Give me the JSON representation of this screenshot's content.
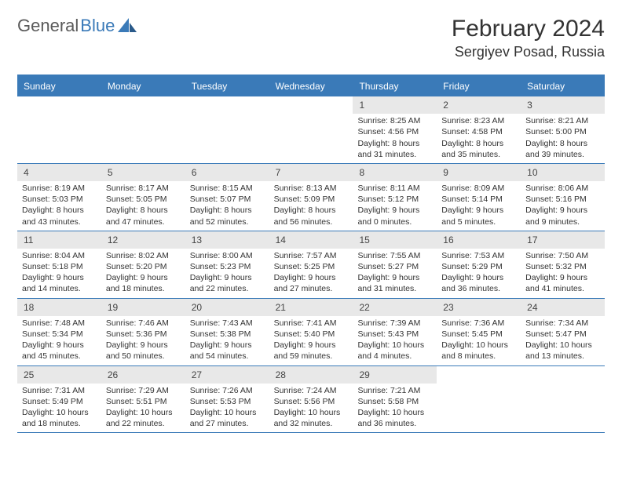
{
  "brand": {
    "part1": "General",
    "part2": "Blue"
  },
  "title": "February 2024",
  "location": "Sergiyev Posad, Russia",
  "colors": {
    "accent": "#3a7ab8",
    "daynum_bg": "#e8e8e8",
    "text": "#333333",
    "bg": "#ffffff"
  },
  "weekdays": [
    "Sunday",
    "Monday",
    "Tuesday",
    "Wednesday",
    "Thursday",
    "Friday",
    "Saturday"
  ],
  "weeks": [
    [
      {
        "num": "",
        "lines": []
      },
      {
        "num": "",
        "lines": []
      },
      {
        "num": "",
        "lines": []
      },
      {
        "num": "",
        "lines": []
      },
      {
        "num": "1",
        "lines": [
          "Sunrise: 8:25 AM",
          "Sunset: 4:56 PM",
          "Daylight: 8 hours and 31 minutes."
        ]
      },
      {
        "num": "2",
        "lines": [
          "Sunrise: 8:23 AM",
          "Sunset: 4:58 PM",
          "Daylight: 8 hours and 35 minutes."
        ]
      },
      {
        "num": "3",
        "lines": [
          "Sunrise: 8:21 AM",
          "Sunset: 5:00 PM",
          "Daylight: 8 hours and 39 minutes."
        ]
      }
    ],
    [
      {
        "num": "4",
        "lines": [
          "Sunrise: 8:19 AM",
          "Sunset: 5:03 PM",
          "Daylight: 8 hours and 43 minutes."
        ]
      },
      {
        "num": "5",
        "lines": [
          "Sunrise: 8:17 AM",
          "Sunset: 5:05 PM",
          "Daylight: 8 hours and 47 minutes."
        ]
      },
      {
        "num": "6",
        "lines": [
          "Sunrise: 8:15 AM",
          "Sunset: 5:07 PM",
          "Daylight: 8 hours and 52 minutes."
        ]
      },
      {
        "num": "7",
        "lines": [
          "Sunrise: 8:13 AM",
          "Sunset: 5:09 PM",
          "Daylight: 8 hours and 56 minutes."
        ]
      },
      {
        "num": "8",
        "lines": [
          "Sunrise: 8:11 AM",
          "Sunset: 5:12 PM",
          "Daylight: 9 hours and 0 minutes."
        ]
      },
      {
        "num": "9",
        "lines": [
          "Sunrise: 8:09 AM",
          "Sunset: 5:14 PM",
          "Daylight: 9 hours and 5 minutes."
        ]
      },
      {
        "num": "10",
        "lines": [
          "Sunrise: 8:06 AM",
          "Sunset: 5:16 PM",
          "Daylight: 9 hours and 9 minutes."
        ]
      }
    ],
    [
      {
        "num": "11",
        "lines": [
          "Sunrise: 8:04 AM",
          "Sunset: 5:18 PM",
          "Daylight: 9 hours and 14 minutes."
        ]
      },
      {
        "num": "12",
        "lines": [
          "Sunrise: 8:02 AM",
          "Sunset: 5:20 PM",
          "Daylight: 9 hours and 18 minutes."
        ]
      },
      {
        "num": "13",
        "lines": [
          "Sunrise: 8:00 AM",
          "Sunset: 5:23 PM",
          "Daylight: 9 hours and 22 minutes."
        ]
      },
      {
        "num": "14",
        "lines": [
          "Sunrise: 7:57 AM",
          "Sunset: 5:25 PM",
          "Daylight: 9 hours and 27 minutes."
        ]
      },
      {
        "num": "15",
        "lines": [
          "Sunrise: 7:55 AM",
          "Sunset: 5:27 PM",
          "Daylight: 9 hours and 31 minutes."
        ]
      },
      {
        "num": "16",
        "lines": [
          "Sunrise: 7:53 AM",
          "Sunset: 5:29 PM",
          "Daylight: 9 hours and 36 minutes."
        ]
      },
      {
        "num": "17",
        "lines": [
          "Sunrise: 7:50 AM",
          "Sunset: 5:32 PM",
          "Daylight: 9 hours and 41 minutes."
        ]
      }
    ],
    [
      {
        "num": "18",
        "lines": [
          "Sunrise: 7:48 AM",
          "Sunset: 5:34 PM",
          "Daylight: 9 hours and 45 minutes."
        ]
      },
      {
        "num": "19",
        "lines": [
          "Sunrise: 7:46 AM",
          "Sunset: 5:36 PM",
          "Daylight: 9 hours and 50 minutes."
        ]
      },
      {
        "num": "20",
        "lines": [
          "Sunrise: 7:43 AM",
          "Sunset: 5:38 PM",
          "Daylight: 9 hours and 54 minutes."
        ]
      },
      {
        "num": "21",
        "lines": [
          "Sunrise: 7:41 AM",
          "Sunset: 5:40 PM",
          "Daylight: 9 hours and 59 minutes."
        ]
      },
      {
        "num": "22",
        "lines": [
          "Sunrise: 7:39 AM",
          "Sunset: 5:43 PM",
          "Daylight: 10 hours and 4 minutes."
        ]
      },
      {
        "num": "23",
        "lines": [
          "Sunrise: 7:36 AM",
          "Sunset: 5:45 PM",
          "Daylight: 10 hours and 8 minutes."
        ]
      },
      {
        "num": "24",
        "lines": [
          "Sunrise: 7:34 AM",
          "Sunset: 5:47 PM",
          "Daylight: 10 hours and 13 minutes."
        ]
      }
    ],
    [
      {
        "num": "25",
        "lines": [
          "Sunrise: 7:31 AM",
          "Sunset: 5:49 PM",
          "Daylight: 10 hours and 18 minutes."
        ]
      },
      {
        "num": "26",
        "lines": [
          "Sunrise: 7:29 AM",
          "Sunset: 5:51 PM",
          "Daylight: 10 hours and 22 minutes."
        ]
      },
      {
        "num": "27",
        "lines": [
          "Sunrise: 7:26 AM",
          "Sunset: 5:53 PM",
          "Daylight: 10 hours and 27 minutes."
        ]
      },
      {
        "num": "28",
        "lines": [
          "Sunrise: 7:24 AM",
          "Sunset: 5:56 PM",
          "Daylight: 10 hours and 32 minutes."
        ]
      },
      {
        "num": "29",
        "lines": [
          "Sunrise: 7:21 AM",
          "Sunset: 5:58 PM",
          "Daylight: 10 hours and 36 minutes."
        ]
      },
      {
        "num": "",
        "lines": []
      },
      {
        "num": "",
        "lines": []
      }
    ]
  ]
}
